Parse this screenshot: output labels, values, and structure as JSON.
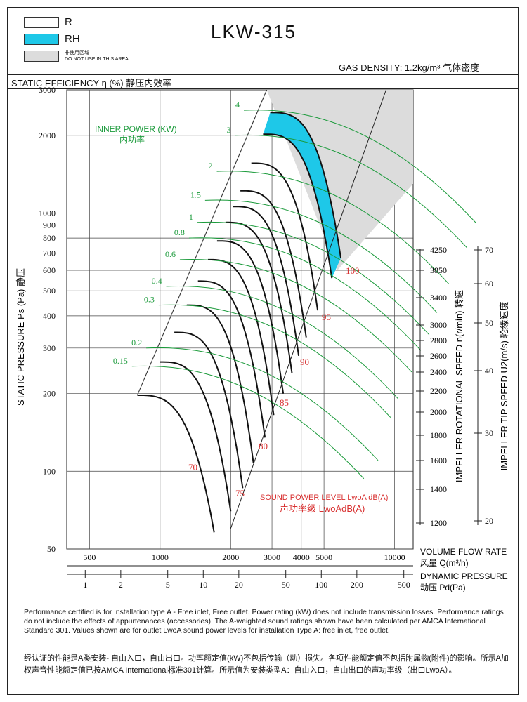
{
  "header": {
    "legend": [
      {
        "label": "R",
        "color": "#ffffff"
      },
      {
        "label": "RH",
        "color": "#1ec8e8"
      },
      {
        "label_cn": "非使用区域",
        "label": "DO NOT USE IN THIS AREA",
        "color": "#dcdcdc"
      }
    ],
    "title": "LKW-315",
    "gas_density": "GAS DENSITY: 1.2kg/m³  气体密度",
    "static_efficiency": "STATIC EFFICIENCY η (%) 静压内效率"
  },
  "chart_data": {
    "type": "line",
    "title": "LKW-315",
    "x_axis": {
      "label": "VOLUME FLOW RATE",
      "label_cn": "风量 Q(m³/h)",
      "scale": "log",
      "range": [
        400,
        12000
      ],
      "tick_labels": [
        "500",
        "1000",
        "2000",
        "3000",
        "4000",
        "5000",
        "10000"
      ],
      "tick_values": [
        500,
        1000,
        2000,
        3000,
        4000,
        5000,
        10000
      ]
    },
    "dynamic_pressure_axis": {
      "label": "DYNAMIC PRESSURE",
      "label_cn": "动压 Pd(Pa)",
      "tick_labels": [
        "1",
        "2",
        "5",
        "10",
        "20",
        "50",
        "100",
        "200",
        "500"
      ],
      "tick_values": [
        1,
        2,
        5,
        10,
        20,
        50,
        100,
        200,
        500
      ]
    },
    "y_axis": {
      "label": "STATIC PRESSURE Ps (Pa) 静压",
      "scale": "log",
      "range": [
        50,
        3000
      ],
      "tick_labels": [
        "50",
        "100",
        "200",
        "300",
        "400",
        "500",
        "600",
        "700",
        "800",
        "900",
        "1000",
        "2000",
        "3000"
      ],
      "tick_values": [
        50,
        100,
        200,
        300,
        400,
        500,
        600,
        700,
        800,
        900,
        1000,
        2000,
        3000
      ]
    },
    "speed_axis": {
      "label": "IMPELLER ROTATIONAL SPEED n(r/min) 转速",
      "tick_labels": [
        "4250",
        "3850",
        "3400",
        "3000",
        "2800",
        "2600",
        "2400",
        "2200",
        "2000",
        "1800",
        "1600",
        "1400",
        "1200"
      ],
      "tick_values": [
        4250,
        3850,
        3400,
        3000,
        2800,
        2600,
        2400,
        2200,
        2000,
        1800,
        1600,
        1400,
        1200
      ]
    },
    "tip_speed_axis": {
      "label": "IMPELLER TIP SPEED U2(m/s) 轮缘速度",
      "tick_labels": [
        "70",
        "60",
        "50",
        "40",
        "30",
        "20"
      ],
      "tick_values": [
        70,
        60,
        50,
        40,
        30,
        20
      ]
    },
    "inner_power": {
      "label": "INNER POWER (KW)",
      "label_cn": "内功率",
      "values": [
        "4",
        "3",
        "2",
        "1.5",
        "1",
        "0.8",
        "0.6",
        "0.4",
        "0.3",
        "0.2",
        "0.15"
      ]
    },
    "sound_power": {
      "label": "SOUND POWER LEVEL LwoA dB(A)",
      "label_cn": "声功率级 LwoAdB(A)",
      "values": [
        "100",
        "95",
        "90",
        "85",
        "80",
        "75",
        "70"
      ]
    },
    "speed_curves": [
      {
        "speed": 4250,
        "ps_max": 2450
      },
      {
        "speed": 3850,
        "ps_max": 2020
      },
      {
        "speed": 3400,
        "ps_max": 1560
      },
      {
        "speed": 3000,
        "ps_max": 1220
      },
      {
        "speed": 2800,
        "ps_max": 1060
      },
      {
        "speed": 2600,
        "ps_max": 920
      },
      {
        "speed": 2400,
        "ps_max": 780
      },
      {
        "speed": 2200,
        "ps_max": 660
      },
      {
        "speed": 2000,
        "ps_max": 545
      },
      {
        "speed": 1800,
        "ps_max": 440
      },
      {
        "speed": 1600,
        "ps_max": 345
      },
      {
        "speed": 1400,
        "ps_max": 265
      },
      {
        "speed": 1200,
        "ps_max": 197
      }
    ],
    "colors": {
      "speed": "#111111",
      "power": "#1a9a3a",
      "sound": "#d83030",
      "rh_fill": "#1ec8e8",
      "no_use": "#dcdcdc"
    }
  },
  "footer": {
    "notes_en": "Performance certified is for installation type A - Free inlet, Free outlet. Power rating (kW) does not include transmission losses. Performance ratings do not include the effects of appurtenances (accessories). The A-weighted sound ratings shown have been calculated per AMCA International Standard 301. Values shown are for outlet LwoA sound power levels for installation Type A: free inlet, free outlet.",
    "notes_cn": "经认证的性能是A类安装- 自由入口，自由出口。功率额定值(kW)不包括传输（动）损失。各项性能额定值不包括附属物(附件)的影响。所示A加权声音性能额定值已按AMCA International标准301计算。所示值为安装类型A：自由入口，自由出口的声功率级（出口LwoA）。"
  }
}
